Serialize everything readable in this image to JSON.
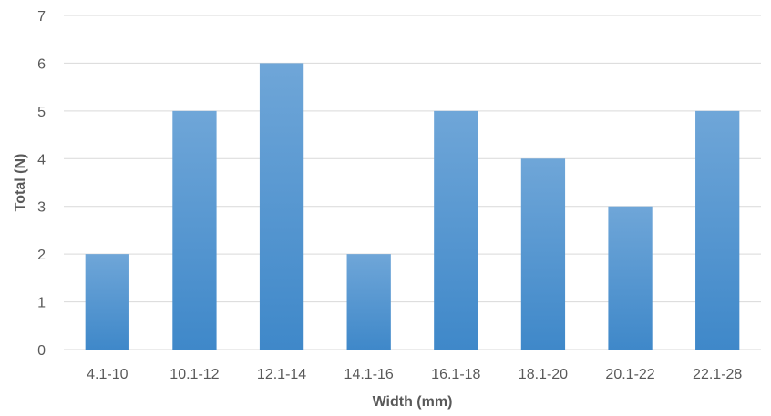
{
  "chart_data": {
    "type": "bar",
    "title": "",
    "xlabel": "Width (mm)",
    "ylabel": "Total (N)",
    "categories": [
      "4.1-10",
      "10.1-12",
      "12.1-14",
      "14.1-16",
      "16.1-18",
      "18.1-20",
      "20.1-22",
      "22.1-28"
    ],
    "values": [
      2,
      5,
      6,
      2,
      5,
      4,
      3,
      5
    ],
    "ylim": [
      0,
      7
    ],
    "yticks": [
      0,
      1,
      2,
      3,
      4,
      5,
      6,
      7
    ],
    "grid": true,
    "legend": "none",
    "bar_color_top": "#6fa6d8",
    "bar_color_bottom": "#3f88c9"
  }
}
